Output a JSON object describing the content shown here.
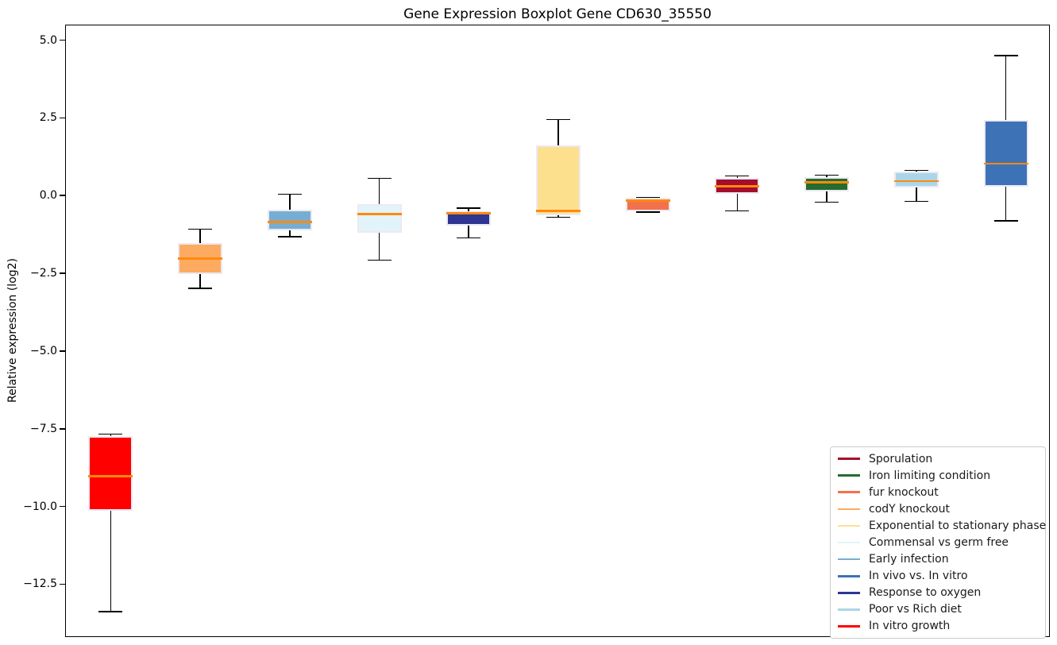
{
  "chart_data": {
    "type": "boxplot",
    "title": "Gene Expression Boxplot Gene CD630_35550",
    "xlabel": "",
    "ylabel": "Relative expression (log2)",
    "ylim": [
      -14.2,
      5.5
    ],
    "grid": false,
    "yticks": [
      {
        "label": "5.0",
        "value": 5.0
      },
      {
        "label": "2.5",
        "value": 2.5
      },
      {
        "label": "0.0",
        "value": 0.0
      },
      {
        "label": "−2.5",
        "value": -2.5
      },
      {
        "label": "−5.0",
        "value": -5.0
      },
      {
        "label": "−7.5",
        "value": -7.5
      },
      {
        "label": "−10.0",
        "value": -10.0
      },
      {
        "label": "−12.5",
        "value": -12.5
      }
    ],
    "median_color": "#ff8a0e",
    "whisker_color": "#000000",
    "box_edge_color": "#ece9f5",
    "boxes": [
      {
        "label": "In vitro growth",
        "color": "#ff0000",
        "whislo": -13.35,
        "q1": -10.1,
        "med": -9.0,
        "q3": -7.7,
        "whishi": -7.65
      },
      {
        "label": "codY knockout",
        "color": "#fcab60",
        "whislo": -2.95,
        "q1": -2.5,
        "med": -2.0,
        "q3": -1.5,
        "whishi": -1.05
      },
      {
        "label": "Early infection",
        "color": "#76aed3",
        "whislo": -1.3,
        "q1": -1.08,
        "med": -0.83,
        "q3": -0.42,
        "whishi": 0.07
      },
      {
        "label": "Commensal vs germ free",
        "color": "#e2f3f9",
        "whislo": -2.05,
        "q1": -1.18,
        "med": -0.57,
        "q3": -0.24,
        "whishi": 0.58
      },
      {
        "label": "Response to oxygen",
        "color": "#2e3692",
        "whislo": -1.33,
        "q1": -0.95,
        "med": -0.55,
        "q3": -0.47,
        "whishi": -0.38
      },
      {
        "label": "Exponential to stationary phase",
        "color": "#fde08e",
        "whislo": -0.67,
        "q1": -0.6,
        "med": -0.47,
        "q3": 1.63,
        "whishi": 2.47
      },
      {
        "label": "fur knockout",
        "color": "#f3714b",
        "whislo": -0.5,
        "q1": -0.49,
        "med": -0.14,
        "q3": -0.04,
        "whishi": -0.03
      },
      {
        "label": "Sporulation",
        "color": "#a50d2d",
        "whislo": -0.47,
        "q1": 0.08,
        "med": 0.33,
        "q3": 0.6,
        "whishi": 0.66
      },
      {
        "label": "Iron limiting condition",
        "color": "#256c2e",
        "whislo": -0.19,
        "q1": 0.15,
        "med": 0.46,
        "q3": 0.62,
        "whishi": 0.68
      },
      {
        "label": "Poor vs Rich diet",
        "color": "#aad6e8",
        "whislo": -0.16,
        "q1": 0.29,
        "med": 0.49,
        "q3": 0.79,
        "whishi": 0.84
      },
      {
        "label": "In vivo vs. In vitro",
        "color": "#3e72b7",
        "whislo": -0.78,
        "q1": 0.31,
        "med": 1.05,
        "q3": 2.46,
        "whishi": 4.53
      }
    ],
    "legend": {
      "position": "lower right",
      "entries": [
        {
          "label": "Sporulation",
          "color": "#a50d2d"
        },
        {
          "label": "Iron limiting condition",
          "color": "#256c2e"
        },
        {
          "label": "fur knockout",
          "color": "#f3714b"
        },
        {
          "label": "codY knockout",
          "color": "#fcab60"
        },
        {
          "label": "Exponential to stationary phase",
          "color": "#fde08e"
        },
        {
          "label": "Commensal vs germ free",
          "color": "#e2f3f9"
        },
        {
          "label": "Early infection",
          "color": "#76aed3"
        },
        {
          "label": "In vivo vs. In vitro",
          "color": "#3e72b7"
        },
        {
          "label": "Response to oxygen",
          "color": "#2e3692"
        },
        {
          "label": "Poor vs Rich diet",
          "color": "#aad6e8"
        },
        {
          "label": "In vitro growth",
          "color": "#ff0000"
        }
      ]
    }
  }
}
